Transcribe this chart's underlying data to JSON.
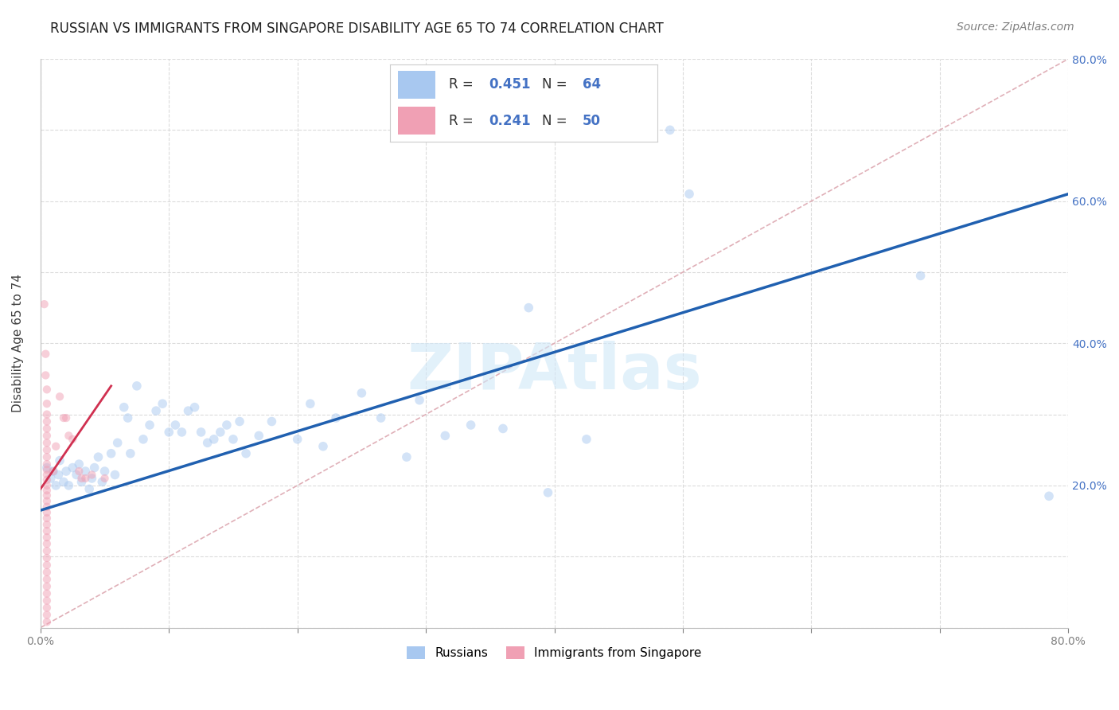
{
  "title": "RUSSIAN VS IMMIGRANTS FROM SINGAPORE DISABILITY AGE 65 TO 74 CORRELATION CHART",
  "source": "Source: ZipAtlas.com",
  "ylabel": "Disability Age 65 to 74",
  "xlim": [
    0.0,
    0.8
  ],
  "ylim": [
    0.0,
    0.8
  ],
  "xticks": [
    0.0,
    0.1,
    0.2,
    0.3,
    0.4,
    0.5,
    0.6,
    0.7,
    0.8
  ],
  "yticks": [
    0.0,
    0.1,
    0.2,
    0.3,
    0.4,
    0.5,
    0.6,
    0.7,
    0.8
  ],
  "xticklabels": [
    "0.0%",
    "",
    "",
    "",
    "",
    "",
    "",
    "",
    "80.0%"
  ],
  "yticklabels_right": [
    "",
    "",
    "20.0%",
    "",
    "40.0%",
    "",
    "60.0%",
    "",
    "80.0%"
  ],
  "legend_label_russians": "Russians",
  "legend_label_immigrants": "Immigrants from Singapore",
  "watermark": "ZIPAtlas",
  "blue_scatter": [
    [
      0.005,
      0.225
    ],
    [
      0.008,
      0.21
    ],
    [
      0.01,
      0.22
    ],
    [
      0.012,
      0.2
    ],
    [
      0.014,
      0.215
    ],
    [
      0.015,
      0.235
    ],
    [
      0.018,
      0.205
    ],
    [
      0.02,
      0.22
    ],
    [
      0.022,
      0.2
    ],
    [
      0.025,
      0.225
    ],
    [
      0.028,
      0.215
    ],
    [
      0.03,
      0.23
    ],
    [
      0.032,
      0.205
    ],
    [
      0.035,
      0.22
    ],
    [
      0.038,
      0.195
    ],
    [
      0.04,
      0.21
    ],
    [
      0.042,
      0.225
    ],
    [
      0.045,
      0.24
    ],
    [
      0.048,
      0.205
    ],
    [
      0.05,
      0.22
    ],
    [
      0.055,
      0.245
    ],
    [
      0.058,
      0.215
    ],
    [
      0.06,
      0.26
    ],
    [
      0.065,
      0.31
    ],
    [
      0.068,
      0.295
    ],
    [
      0.07,
      0.245
    ],
    [
      0.075,
      0.34
    ],
    [
      0.08,
      0.265
    ],
    [
      0.085,
      0.285
    ],
    [
      0.09,
      0.305
    ],
    [
      0.095,
      0.315
    ],
    [
      0.1,
      0.275
    ],
    [
      0.105,
      0.285
    ],
    [
      0.11,
      0.275
    ],
    [
      0.115,
      0.305
    ],
    [
      0.12,
      0.31
    ],
    [
      0.125,
      0.275
    ],
    [
      0.13,
      0.26
    ],
    [
      0.135,
      0.265
    ],
    [
      0.14,
      0.275
    ],
    [
      0.145,
      0.285
    ],
    [
      0.15,
      0.265
    ],
    [
      0.155,
      0.29
    ],
    [
      0.16,
      0.245
    ],
    [
      0.17,
      0.27
    ],
    [
      0.18,
      0.29
    ],
    [
      0.2,
      0.265
    ],
    [
      0.21,
      0.315
    ],
    [
      0.22,
      0.255
    ],
    [
      0.23,
      0.295
    ],
    [
      0.25,
      0.33
    ],
    [
      0.265,
      0.295
    ],
    [
      0.285,
      0.24
    ],
    [
      0.295,
      0.32
    ],
    [
      0.315,
      0.27
    ],
    [
      0.335,
      0.285
    ],
    [
      0.36,
      0.28
    ],
    [
      0.38,
      0.45
    ],
    [
      0.395,
      0.19
    ],
    [
      0.425,
      0.265
    ],
    [
      0.49,
      0.7
    ],
    [
      0.505,
      0.61
    ],
    [
      0.685,
      0.495
    ],
    [
      0.785,
      0.185
    ]
  ],
  "pink_scatter": [
    [
      0.003,
      0.455
    ],
    [
      0.004,
      0.385
    ],
    [
      0.004,
      0.355
    ],
    [
      0.005,
      0.335
    ],
    [
      0.005,
      0.315
    ],
    [
      0.005,
      0.3
    ],
    [
      0.005,
      0.29
    ],
    [
      0.005,
      0.28
    ],
    [
      0.005,
      0.27
    ],
    [
      0.005,
      0.26
    ],
    [
      0.005,
      0.25
    ],
    [
      0.005,
      0.24
    ],
    [
      0.005,
      0.23
    ],
    [
      0.005,
      0.222
    ],
    [
      0.005,
      0.215
    ],
    [
      0.005,
      0.208
    ],
    [
      0.005,
      0.2
    ],
    [
      0.005,
      0.193
    ],
    [
      0.005,
      0.186
    ],
    [
      0.005,
      0.178
    ],
    [
      0.005,
      0.17
    ],
    [
      0.005,
      0.162
    ],
    [
      0.005,
      0.154
    ],
    [
      0.005,
      0.145
    ],
    [
      0.005,
      0.136
    ],
    [
      0.005,
      0.127
    ],
    [
      0.005,
      0.118
    ],
    [
      0.005,
      0.108
    ],
    [
      0.005,
      0.098
    ],
    [
      0.005,
      0.088
    ],
    [
      0.005,
      0.078
    ],
    [
      0.005,
      0.068
    ],
    [
      0.005,
      0.058
    ],
    [
      0.005,
      0.048
    ],
    [
      0.005,
      0.038
    ],
    [
      0.005,
      0.028
    ],
    [
      0.005,
      0.018
    ],
    [
      0.005,
      0.008
    ],
    [
      0.01,
      0.22
    ],
    [
      0.012,
      0.255
    ],
    [
      0.015,
      0.325
    ],
    [
      0.018,
      0.295
    ],
    [
      0.02,
      0.295
    ],
    [
      0.022,
      0.27
    ],
    [
      0.025,
      0.265
    ],
    [
      0.03,
      0.22
    ],
    [
      0.032,
      0.21
    ],
    [
      0.035,
      0.21
    ],
    [
      0.04,
      0.215
    ],
    [
      0.05,
      0.21
    ]
  ],
  "blue_line_x": [
    0.0,
    0.8
  ],
  "blue_line_y": [
    0.165,
    0.61
  ],
  "pink_line_x": [
    0.0,
    0.055
  ],
  "pink_line_y": [
    0.195,
    0.34
  ],
  "ref_line_x": [
    0.0,
    0.8
  ],
  "ref_line_y": [
    0.0,
    0.8
  ],
  "scatter_size_blue": 70,
  "scatter_size_pink": 55,
  "scatter_alpha_blue": 0.5,
  "scatter_alpha_pink": 0.5,
  "scatter_color_blue": "#a8c8f0",
  "scatter_color_pink": "#f0a0b4",
  "line_color_blue": "#2060b0",
  "line_color_pink": "#d03050",
  "ref_line_color": "#e0b0b8",
  "grid_color": "#d8d8d8",
  "title_color": "#202020",
  "source_color": "#808080",
  "title_fontsize": 12,
  "axis_label_fontsize": 11,
  "tick_fontsize": 10,
  "source_fontsize": 10,
  "r_blue": "0.451",
  "n_blue": "64",
  "r_pink": "0.241",
  "n_pink": "50"
}
